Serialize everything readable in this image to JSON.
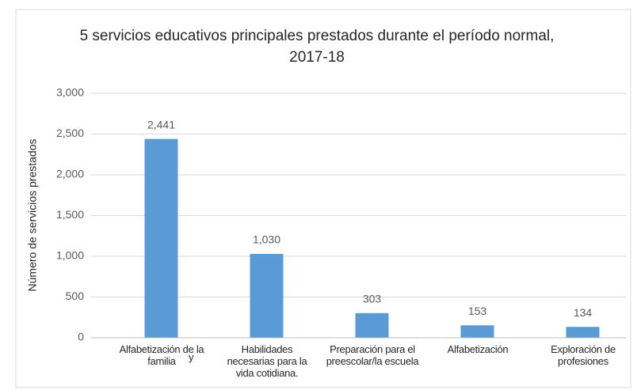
{
  "chart_data": {
    "type": "bar",
    "title": "5 servicios educativos principales prestados durante el período normal, 2017-18",
    "y_label": "Número de servicios prestados",
    "categories": [
      "Alfabetización de la familia",
      "Habilidades necesarias para la vida cotidiana.",
      "Preparación para el preescolar/la escuela",
      "Alfabetización",
      "Exploración de profesiones"
    ],
    "values": [
      2441,
      1030,
      303,
      153,
      134
    ],
    "value_labels": [
      "2,441",
      "1,030",
      "303",
      "153",
      "134"
    ],
    "annotations": [
      "y"
    ],
    "color": "#5b9bd5",
    "ylim": [
      0,
      3000
    ],
    "yticks": [
      0,
      500,
      {
        "value": 1000,
        "label": "1,000"
      },
      {
        "value": 1500,
        "label": "1,500"
      },
      {
        "value": 2000,
        "label": "2,000"
      },
      {
        "value": 2500,
        "label": "2,500"
      },
      {
        "value": 3000,
        "label": "3,000"
      }
    ],
    "grid": true
  }
}
